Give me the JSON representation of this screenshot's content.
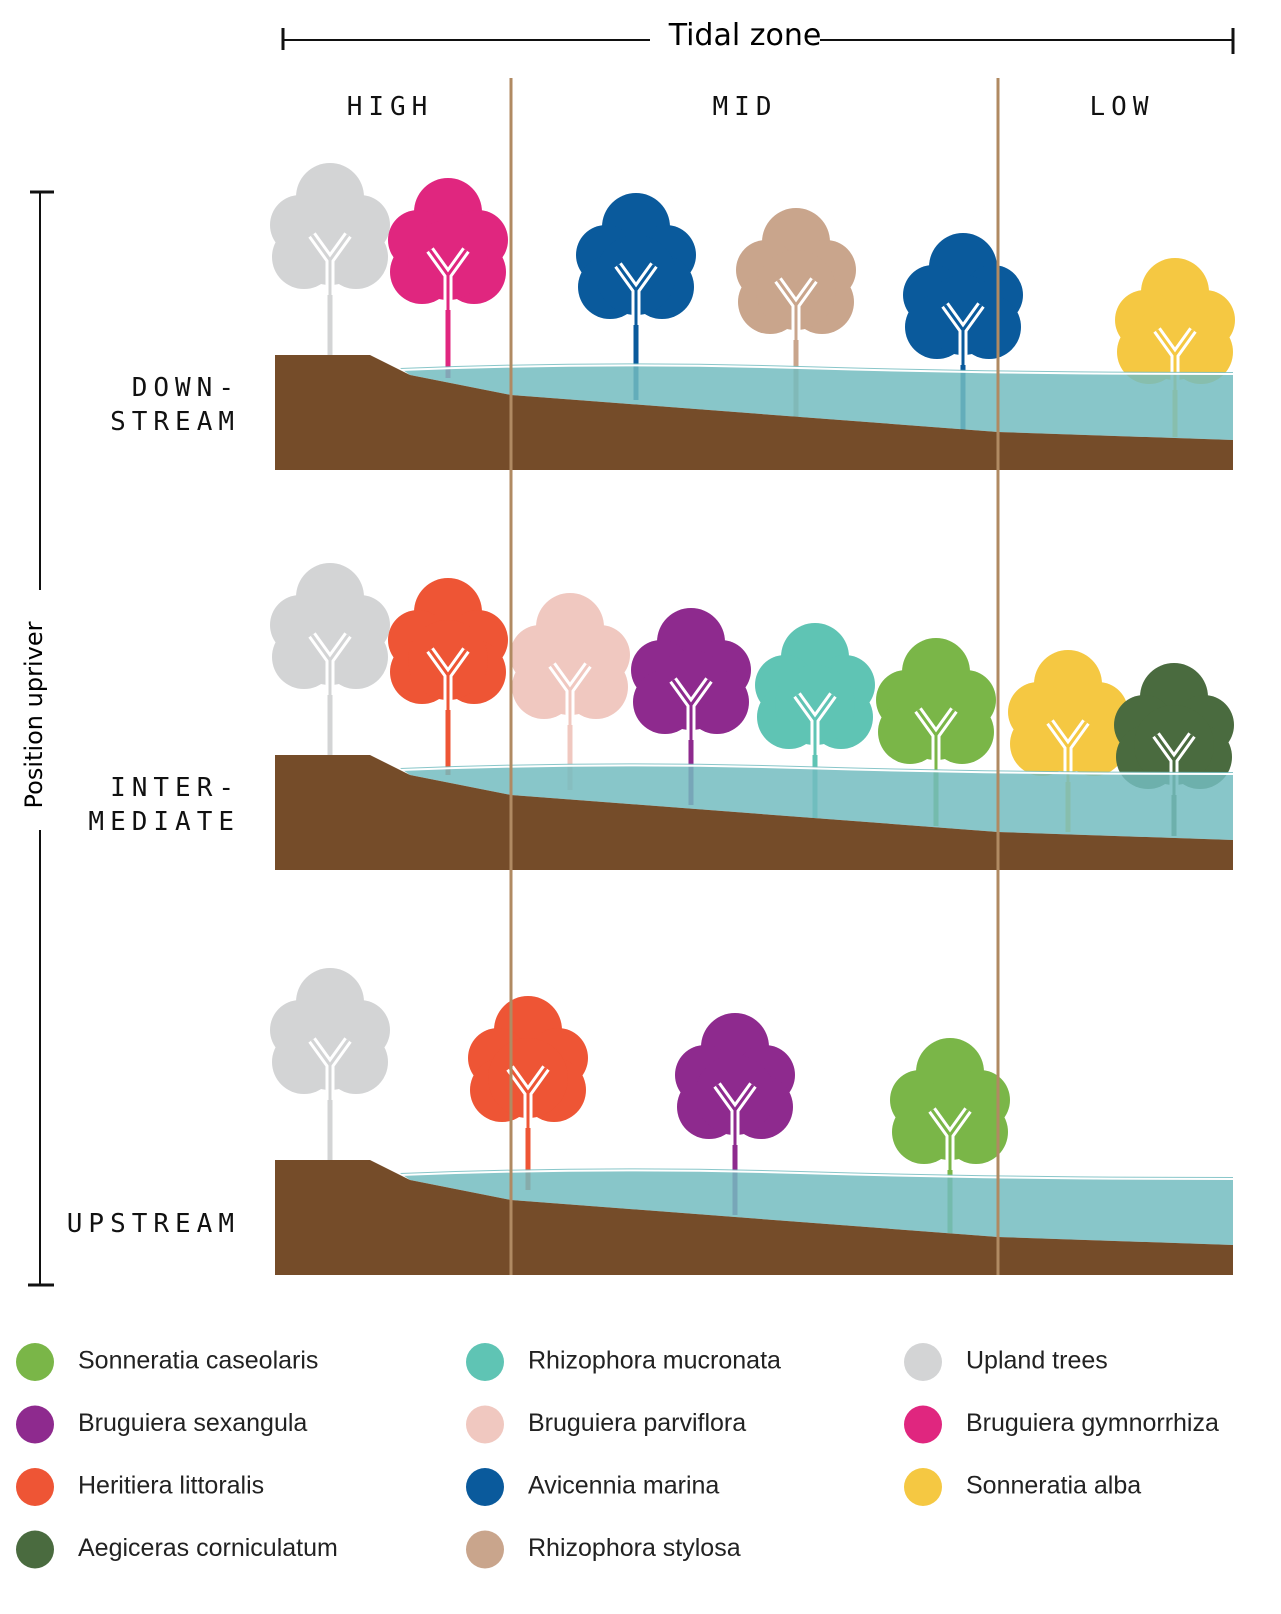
{
  "header": {
    "title": "Tidal zone",
    "zones": [
      "HIGH",
      "MID",
      "LOW"
    ]
  },
  "side": {
    "title": "Position upriver",
    "rows": [
      [
        "DOWN-",
        "STREAM"
      ],
      [
        "INTER-",
        "MEDIATE"
      ],
      [
        "UPSTREAM"
      ]
    ]
  },
  "legend": [
    {
      "label": "Sonneratia caseolaris",
      "color": "#7ab648"
    },
    {
      "label": "Bruguiera sexangula",
      "color": "#8e2a8e"
    },
    {
      "label": "Heritiera littoralis",
      "color": "#ee5535"
    },
    {
      "label": "Aegiceras corniculatum",
      "color": "#4a6b3f"
    },
    {
      "label": "Rhizophora mucronata",
      "color": "#5fc4b4"
    },
    {
      "label": "Bruguiera parviflora",
      "color": "#f0c8c0"
    },
    {
      "label": "Avicennia marina",
      "color": "#0a5a9c"
    },
    {
      "label": "Rhizophora stylosa",
      "color": "#c9a58c"
    },
    {
      "label": "Upland trees",
      "color": "#d3d4d5"
    },
    {
      "label": "Bruguiera gymnorrhiza",
      "color": "#e0267f"
    },
    {
      "label": "Sonneratia alba",
      "color": "#f5c842"
    }
  ]
}
